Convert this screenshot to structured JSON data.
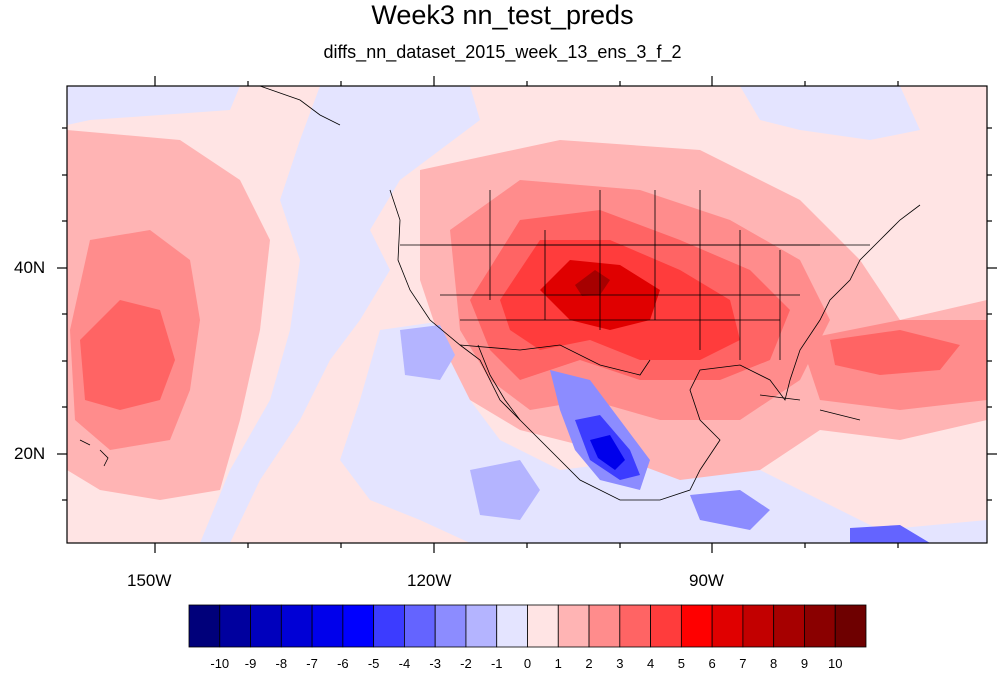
{
  "title": "Week3 nn_test_preds",
  "subtitle": "diffs_nn_dataset_2015_week_13_ens_3_f_2",
  "map": {
    "x_ticks": [
      "150W",
      "120W",
      "90W"
    ],
    "y_ticks": [
      "40N",
      "20N"
    ]
  },
  "colorbar": {
    "labels": [
      "-10",
      "-9",
      "-8",
      "-7",
      "-6",
      "-5",
      "-4",
      "-3",
      "-2",
      "-1",
      "0",
      "1",
      "2",
      "3",
      "4",
      "5",
      "6",
      "7",
      "8",
      "9",
      "10"
    ],
    "colors": [
      "#00007a",
      "#00009e",
      "#0000bd",
      "#0000d6",
      "#0000eb",
      "#0000ff",
      "#3c3cff",
      "#6464ff",
      "#8c8cff",
      "#b4b4ff",
      "#e4e4ff",
      "#ffe4e4",
      "#ffb4b4",
      "#ff8c8c",
      "#ff6464",
      "#ff3c3c",
      "#ff0000",
      "#e00000",
      "#c20000",
      "#a60000",
      "#8a0000",
      "#6e0000"
    ]
  }
}
